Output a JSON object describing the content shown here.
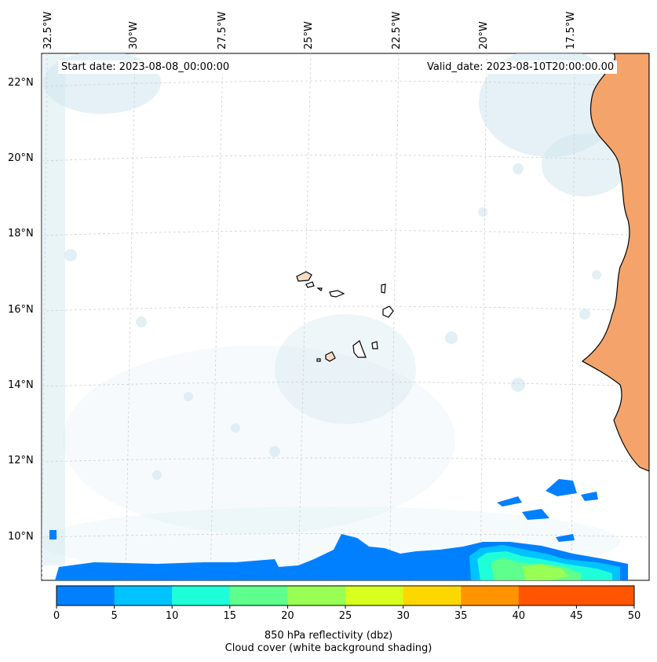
{
  "map": {
    "start_date": "Start date: 2023-08-08_00:00:00",
    "valid_date": "Valid_date: 2023-08-10T20:00:00.00",
    "longitude_labels": [
      "32.5°W",
      "30°W",
      "27.5°W",
      "25°W",
      "22.5°W",
      "20°W",
      "17.5°W"
    ],
    "latitude_labels": [
      "22°N",
      "20°N",
      "18°N",
      "16°N",
      "14°N",
      "12°N",
      "10°N"
    ],
    "coastline_color": "#000000",
    "land_color": "#f4a46a",
    "cloud_color": "#cfe6ee",
    "gridline_color": "#d0d0d0"
  },
  "colorbar": {
    "label_line1": "850 hPa reflectivity (dbz)",
    "label_line2": "Cloud cover (white background shading)",
    "ticks": [
      "0",
      "5",
      "10",
      "15",
      "20",
      "25",
      "30",
      "35",
      "40",
      "45",
      "50"
    ],
    "bins": [
      {
        "range": "0-5",
        "color": "#0080ff"
      },
      {
        "range": "5-10",
        "color": "#00c3ff"
      },
      {
        "range": "10-15",
        "color": "#1effd8"
      },
      {
        "range": "15-20",
        "color": "#5fff8d"
      },
      {
        "range": "20-25",
        "color": "#99ff55"
      },
      {
        "range": "25-30",
        "color": "#d8ff1e"
      },
      {
        "range": "30-35",
        "color": "#ffd700"
      },
      {
        "range": "35-40",
        "color": "#ff9400"
      },
      {
        "range": "40-45",
        "color": "#ff5500"
      },
      {
        "range": "45-50",
        "color": "#ff5500"
      }
    ]
  }
}
